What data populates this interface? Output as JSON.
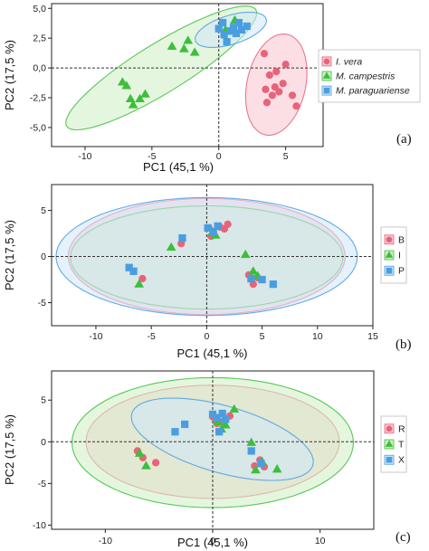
{
  "colors": {
    "pink": "#e8637a",
    "green": "#3cbf3c",
    "blue": "#4a9ee0",
    "pink_fill": "#f7c4cf",
    "green_fill": "#cfeec5",
    "blue_fill": "#cfe6f8"
  },
  "chart_data": [
    {
      "type": "scatter",
      "panel_label": "(a)",
      "xlabel": "PC1 (45,1 %)",
      "ylabel": "PC2 (17,5 %)",
      "xlim": [
        -12.5,
        7.8
      ],
      "ylim": [
        -6.6,
        5.4
      ],
      "xticks": [
        -10,
        -5,
        0,
        5
      ],
      "xtick_labels": [
        "-10",
        "-5",
        "0",
        "5"
      ],
      "yticks": [
        -5,
        -2.5,
        0,
        2.5,
        5
      ],
      "ytick_labels": [
        "-5,0",
        "-2,5",
        "0,0",
        "2,5",
        "5,0"
      ],
      "legend_position": "right",
      "series": [
        {
          "name": "I. vera",
          "marker": "circle",
          "color": "pink",
          "italic": true,
          "points": [
            [
              3.5,
              -1.8
            ],
            [
              3.6,
              -2.9
            ],
            [
              3.8,
              -0.6
            ],
            [
              4.0,
              -2.3
            ],
            [
              4.2,
              -1.6
            ],
            [
              4.3,
              -0.3
            ],
            [
              4.5,
              -2.0
            ],
            [
              4.8,
              -1.3
            ],
            [
              5.0,
              0.3
            ],
            [
              5.5,
              -2.3
            ],
            [
              5.8,
              -3.2
            ],
            [
              3.4,
              1.2
            ]
          ]
        },
        {
          "name": "M. campestris",
          "marker": "triangle",
          "color": "green",
          "italic": true,
          "points": [
            [
              -7.2,
              -1.2
            ],
            [
              -6.9,
              -1.5
            ],
            [
              -6.6,
              -2.6
            ],
            [
              -6.4,
              -3.1
            ],
            [
              -5.9,
              -2.6
            ],
            [
              -5.5,
              -2.2
            ],
            [
              -3.5,
              1.8
            ],
            [
              -2.6,
              1.6
            ],
            [
              -2.3,
              2.3
            ],
            [
              -1.8,
              1.3
            ],
            [
              0.5,
              3.2
            ],
            [
              1.2,
              4.0
            ]
          ]
        },
        {
          "name": "M. paraguariense",
          "marker": "square",
          "color": "blue",
          "italic": true,
          "points": [
            [
              0.0,
              3.3
            ],
            [
              0.4,
              2.8
            ],
            [
              0.6,
              2.2
            ],
            [
              0.9,
              3.1
            ],
            [
              1.1,
              3.4
            ],
            [
              1.5,
              3.8
            ],
            [
              1.7,
              3.2
            ],
            [
              2.1,
              3.5
            ],
            [
              0.3,
              3.8
            ],
            [
              1.3,
              2.9
            ]
          ]
        }
      ],
      "ellipses": [
        {
          "series": "I. vera",
          "cx": 4.3,
          "cy": -1.4,
          "rx": 2.2,
          "ry": 4.3,
          "angle": -10
        },
        {
          "series": "M. campestris",
          "cx": -4.3,
          "cy": 0.0,
          "rx": 8.6,
          "ry": 2.0,
          "angle": 35
        },
        {
          "series": "M. paraguariense",
          "cx": 0.9,
          "cy": 3.2,
          "rx": 2.8,
          "ry": 1.2,
          "angle": 20
        }
      ]
    },
    {
      "type": "scatter",
      "panel_label": "(b)",
      "xlabel": "PC1 (45,1 %)",
      "ylabel": "PC2 (17,5 %)",
      "xlim": [
        -14,
        15
      ],
      "ylim": [
        -7.5,
        7.8
      ],
      "xticks": [
        -10,
        -5,
        0,
        5,
        10,
        15
      ],
      "xtick_labels": [
        "-10",
        "-5",
        "0",
        "5",
        "10",
        "15"
      ],
      "yticks": [
        -5,
        0,
        5
      ],
      "ytick_labels": [
        "-5",
        "0",
        "5"
      ],
      "legend_position": "right",
      "series": [
        {
          "name": "B",
          "marker": "circle",
          "color": "pink",
          "points": [
            [
              -5.8,
              -2.4
            ],
            [
              -2.3,
              1.4
            ],
            [
              0.4,
              2.2
            ],
            [
              1.2,
              3.2
            ],
            [
              1.6,
              3.0
            ],
            [
              1.9,
              3.5
            ],
            [
              3.8,
              -2.0
            ],
            [
              4.2,
              -3.0
            ],
            [
              4.6,
              -2.3
            ],
            [
              0.2,
              3.1
            ]
          ]
        },
        {
          "name": "I",
          "marker": "triangle",
          "color": "green",
          "points": [
            [
              -6.1,
              -3.0
            ],
            [
              -3.2,
              1.0
            ],
            [
              0.5,
              2.6
            ],
            [
              3.5,
              0.2
            ],
            [
              4.2,
              -1.6
            ],
            [
              4.6,
              -2.1
            ],
            [
              0.8,
              2.3
            ]
          ]
        },
        {
          "name": "P",
          "marker": "square",
          "color": "blue",
          "points": [
            [
              -7.0,
              -1.2
            ],
            [
              -6.6,
              -1.6
            ],
            [
              -2.2,
              2.0
            ],
            [
              0.1,
              3.1
            ],
            [
              0.6,
              2.7
            ],
            [
              1.0,
              3.3
            ],
            [
              4.0,
              -2.4
            ],
            [
              5.0,
              -2.5
            ],
            [
              6.0,
              -3.0
            ]
          ]
        }
      ],
      "ellipses": [
        {
          "series": "B",
          "cx": 0.0,
          "cy": 0.0,
          "rx": 12.5,
          "ry": 6.3,
          "angle": 0
        },
        {
          "series": "I",
          "cx": 0.0,
          "cy": -0.1,
          "rx": 12.3,
          "ry": 5.6,
          "angle": 0
        },
        {
          "series": "P",
          "cx": 0.0,
          "cy": 0.0,
          "rx": 13.6,
          "ry": 6.4,
          "angle": 0
        }
      ]
    },
    {
      "type": "scatter",
      "panel_label": "(c)",
      "xlabel": "PC1 (45,1 %)",
      "ylabel": "PC2 (17,5 %)",
      "xlim": [
        -15,
        15
      ],
      "ylim": [
        -10.5,
        8.5
      ],
      "xticks": [
        -10,
        0,
        10
      ],
      "xtick_labels": [
        "-10",
        "0",
        "10"
      ],
      "yticks": [
        -10,
        -5,
        0,
        5
      ],
      "ytick_labels": [
        "-10",
        "-5",
        "0",
        "5"
      ],
      "legend_position": "right",
      "series": [
        {
          "name": "R",
          "marker": "circle",
          "color": "pink",
          "points": [
            [
              -7.0,
              -1.1
            ],
            [
              -6.5,
              -1.9
            ],
            [
              -5.3,
              -2.5
            ],
            [
              0.0,
              3.0
            ],
            [
              0.9,
              2.4
            ],
            [
              1.6,
              3.1
            ],
            [
              3.9,
              -2.9
            ],
            [
              4.4,
              -2.2
            ],
            [
              4.8,
              -3.0
            ],
            [
              0.4,
              2.2
            ]
          ]
        },
        {
          "name": "T",
          "marker": "triangle",
          "color": "green",
          "points": [
            [
              -6.8,
              -1.4
            ],
            [
              -6.2,
              -2.9
            ],
            [
              0.5,
              2.4
            ],
            [
              1.2,
              2.0
            ],
            [
              2.0,
              3.9
            ],
            [
              3.6,
              -0.1
            ],
            [
              4.0,
              -3.4
            ],
            [
              4.6,
              -2.4
            ],
            [
              6.0,
              -3.3
            ],
            [
              0.8,
              1.5
            ]
          ]
        },
        {
          "name": "X",
          "marker": "square",
          "color": "blue",
          "points": [
            [
              -3.5,
              1.2
            ],
            [
              -2.6,
              2.1
            ],
            [
              0.0,
              3.3
            ],
            [
              0.4,
              2.9
            ],
            [
              0.9,
              3.4
            ],
            [
              1.2,
              2.7
            ],
            [
              3.6,
              -1.1
            ],
            [
              4.5,
              -2.6
            ],
            [
              0.6,
              1.2
            ]
          ]
        }
      ],
      "ellipses": [
        {
          "series": "R",
          "cx": 0.0,
          "cy": 0.0,
          "rx": 11.8,
          "ry": 6.8,
          "angle": 0
        },
        {
          "series": "T",
          "cx": 0.0,
          "cy": -0.1,
          "rx": 13.1,
          "ry": 7.8,
          "angle": 0
        },
        {
          "series": "X",
          "cx": 0.9,
          "cy": 0.3,
          "rx": 9.0,
          "ry": 3.9,
          "angle": -22
        }
      ]
    }
  ]
}
